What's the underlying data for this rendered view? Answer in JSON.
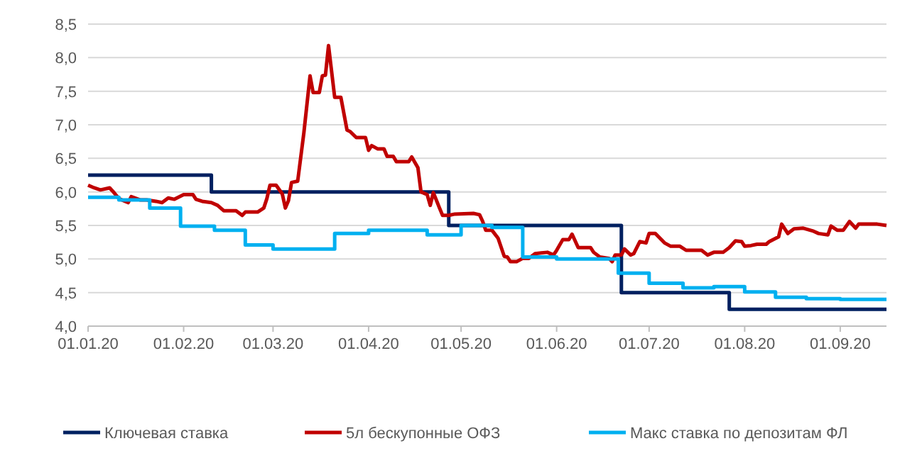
{
  "chart_data": {
    "type": "line",
    "xlim": [
      "2020-01-01",
      "2020-09-16"
    ],
    "ylim": [
      4,
      8.5
    ],
    "xticks": [
      {
        "value": "2020-01-01",
        "label": "01.01.20"
      },
      {
        "value": "2020-02-01",
        "label": "01.02.20"
      },
      {
        "value": "2020-03-01",
        "label": "01.03.20"
      },
      {
        "value": "2020-04-01",
        "label": "01.04.20"
      },
      {
        "value": "2020-05-01",
        "label": "01.05.20"
      },
      {
        "value": "2020-06-01",
        "label": "01.06.20"
      },
      {
        "value": "2020-07-01",
        "label": "01.07.20"
      },
      {
        "value": "2020-08-01",
        "label": "01.08.20"
      },
      {
        "value": "2020-09-01",
        "label": "01.09.20"
      }
    ],
    "yticks": [
      {
        "value": 4,
        "label": "4,0"
      },
      {
        "value": 4.5,
        "label": "4,5"
      },
      {
        "value": 5,
        "label": "5,0"
      },
      {
        "value": 5.5,
        "label": "5,5"
      },
      {
        "value": 6,
        "label": "6,0"
      },
      {
        "value": 6.5,
        "label": "6,5"
      },
      {
        "value": 7,
        "label": "7,0"
      },
      {
        "value": 7.5,
        "label": "7,5"
      },
      {
        "value": 8,
        "label": "8,0"
      },
      {
        "value": 8.5,
        "label": "8,5"
      }
    ],
    "grid": "y",
    "legend": "bottom",
    "series": [
      {
        "name": "Ключевая ставка",
        "type": "step",
        "color": "#002060",
        "x": [
          "2020-01-01",
          "2020-02-10",
          "2020-04-27",
          "2020-06-22",
          "2020-07-27",
          "2020-09-16"
        ],
        "values": [
          6.25,
          6.0,
          5.5,
          4.5,
          4.25,
          4.25
        ]
      },
      {
        "name": "5л бескупонные ОФЗ",
        "type": "line",
        "color": "#c00000",
        "x": [
          "2020-01-01",
          "2020-01-03",
          "2020-01-05",
          "2020-01-08",
          "2020-01-09",
          "2020-01-11",
          "2020-01-13",
          "2020-01-14",
          "2020-01-15",
          "2020-01-18",
          "2020-01-20",
          "2020-01-23",
          "2020-01-25",
          "2020-01-27",
          "2020-01-29",
          "2020-02-01",
          "2020-02-04",
          "2020-02-05",
          "2020-02-07",
          "2020-02-10",
          "2020-02-12",
          "2020-02-14",
          "2020-02-18",
          "2020-02-20",
          "2020-02-21",
          "2020-02-25",
          "2020-02-27",
          "2020-02-28",
          "2020-02-29",
          "2020-03-02",
          "2020-03-04",
          "2020-03-05",
          "2020-03-06",
          "2020-03-07",
          "2020-03-09",
          "2020-03-11",
          "2020-03-13",
          "2020-03-14",
          "2020-03-16",
          "2020-03-17",
          "2020-03-18",
          "2020-03-19",
          "2020-03-21",
          "2020-03-23",
          "2020-03-25",
          "2020-03-26",
          "2020-03-28",
          "2020-03-31",
          "2020-04-01",
          "2020-04-02",
          "2020-04-04",
          "2020-04-06",
          "2020-04-07",
          "2020-04-09",
          "2020-04-10",
          "2020-04-14",
          "2020-04-15",
          "2020-04-17",
          "2020-04-18",
          "2020-04-20",
          "2020-04-21",
          "2020-04-22",
          "2020-04-24",
          "2020-04-25",
          "2020-04-27",
          "2020-04-29",
          "2020-05-05",
          "2020-05-07",
          "2020-05-08",
          "2020-05-09",
          "2020-05-11",
          "2020-05-13",
          "2020-05-15",
          "2020-05-16",
          "2020-05-17",
          "2020-05-19",
          "2020-05-21",
          "2020-05-23",
          "2020-05-25",
          "2020-05-29",
          "2020-05-31",
          "2020-06-01",
          "2020-06-03",
          "2020-06-05",
          "2020-06-06",
          "2020-06-08",
          "2020-06-12",
          "2020-06-13",
          "2020-06-15",
          "2020-06-18",
          "2020-06-19",
          "2020-06-20",
          "2020-06-22",
          "2020-06-23",
          "2020-06-25",
          "2020-06-26",
          "2020-06-28",
          "2020-06-30",
          "2020-07-01",
          "2020-07-03",
          "2020-07-06",
          "2020-07-08",
          "2020-07-11",
          "2020-07-13",
          "2020-07-18",
          "2020-07-20",
          "2020-07-22",
          "2020-07-25",
          "2020-07-27",
          "2020-07-29",
          "2020-07-31",
          "2020-08-01",
          "2020-08-03",
          "2020-08-05",
          "2020-08-08",
          "2020-08-09",
          "2020-08-12",
          "2020-08-13",
          "2020-08-15",
          "2020-08-17",
          "2020-08-20",
          "2020-08-23",
          "2020-08-25",
          "2020-08-28",
          "2020-08-29",
          "2020-08-31",
          "2020-09-02",
          "2020-09-04",
          "2020-09-06",
          "2020-09-07",
          "2020-09-13",
          "2020-09-16"
        ],
        "values": [
          6.1,
          6.06,
          6.03,
          6.06,
          6.01,
          5.9,
          5.86,
          5.84,
          5.93,
          5.88,
          5.88,
          5.86,
          5.84,
          5.91,
          5.89,
          5.96,
          5.96,
          5.89,
          5.86,
          5.84,
          5.8,
          5.72,
          5.72,
          5.65,
          5.7,
          5.7,
          5.76,
          5.9,
          6.1,
          6.1,
          5.97,
          5.76,
          5.87,
          6.14,
          6.16,
          6.88,
          7.73,
          7.48,
          7.48,
          7.73,
          7.74,
          8.18,
          7.41,
          7.41,
          6.92,
          6.9,
          6.81,
          6.81,
          6.62,
          6.69,
          6.64,
          6.64,
          6.53,
          6.53,
          6.45,
          6.45,
          6.52,
          6.36,
          6.0,
          5.96,
          5.8,
          5.99,
          5.76,
          5.65,
          5.65,
          5.67,
          5.68,
          5.66,
          5.56,
          5.43,
          5.43,
          5.31,
          5.04,
          5.03,
          4.96,
          4.96,
          5.01,
          5.01,
          5.08,
          5.1,
          5.06,
          5.13,
          5.29,
          5.29,
          5.37,
          5.17,
          5.17,
          5.1,
          5.03,
          5.01,
          4.96,
          5.06,
          5.06,
          5.15,
          5.06,
          5.08,
          5.26,
          5.24,
          5.38,
          5.38,
          5.24,
          5.19,
          5.19,
          5.13,
          5.13,
          5.06,
          5.1,
          5.1,
          5.17,
          5.27,
          5.26,
          5.19,
          5.2,
          5.22,
          5.22,
          5.26,
          5.33,
          5.52,
          5.38,
          5.45,
          5.46,
          5.42,
          5.38,
          5.36,
          5.49,
          5.43,
          5.43,
          5.56,
          5.46,
          5.52,
          5.52,
          5.5
        ]
      },
      {
        "name": "Макс ставка по депозитам ФЛ",
        "type": "step",
        "color": "#00b0f0",
        "x": [
          "2020-01-01",
          "2020-01-11",
          "2020-01-21",
          "2020-01-31",
          "2020-02-11",
          "2020-02-21",
          "2020-03-01",
          "2020-03-21",
          "2020-04-01",
          "2020-04-20",
          "2020-05-01",
          "2020-05-11",
          "2020-05-21",
          "2020-06-01",
          "2020-06-21",
          "2020-07-01",
          "2020-07-12",
          "2020-07-22",
          "2020-08-01",
          "2020-08-11",
          "2020-08-21",
          "2020-09-01",
          "2020-09-16"
        ],
        "values": [
          5.92,
          5.88,
          5.76,
          5.49,
          5.43,
          5.21,
          5.15,
          5.38,
          5.43,
          5.36,
          5.5,
          5.47,
          5.03,
          5.0,
          4.79,
          4.64,
          4.57,
          4.59,
          4.51,
          4.43,
          4.41,
          4.4,
          4.4
        ]
      }
    ]
  }
}
